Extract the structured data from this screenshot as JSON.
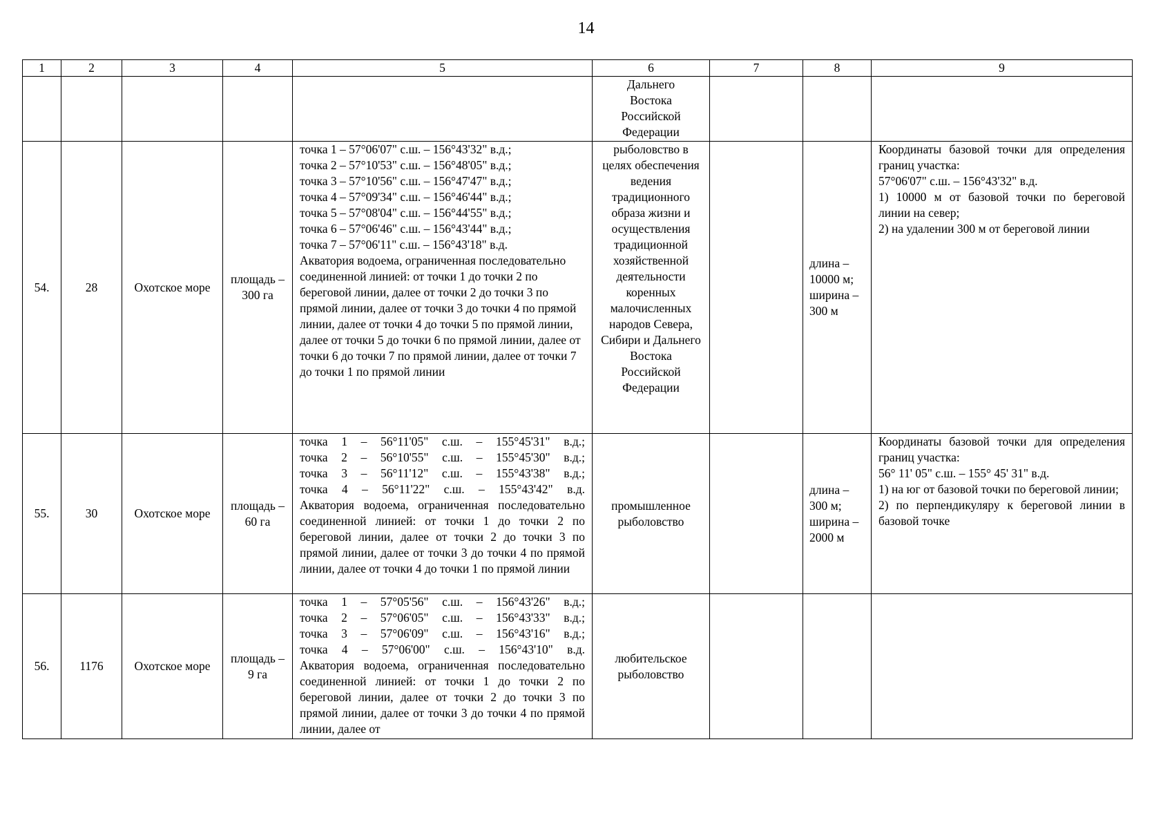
{
  "page_number": "14",
  "columns": [
    "1",
    "2",
    "3",
    "4",
    "5",
    "6",
    "7",
    "8",
    "9"
  ],
  "continuation_row": {
    "c6": [
      "Дальнего",
      "Востока",
      "Российской",
      "Федерации"
    ]
  },
  "rows": [
    {
      "num": "54.",
      "c2": "28",
      "c3": "Охотское море",
      "c4": "площадь – 300 га",
      "c5_points": [
        "точка 1 – 57°06'07\" с.ш. – 156°43'32\" в.д.;",
        "точка 2 – 57°10'53\" с.ш. – 156°48'05\" в.д.;",
        "точка 3 – 57°10'56\" с.ш. – 156°47'47\" в.д.;",
        "точка 4 – 57°09'34\" с.ш. – 156°46'44\" в.д.;",
        "точка 5 – 57°08'04\" с.ш. – 156°44'55\" в.д.;",
        "точка 6 – 57°06'46\" с.ш. – 156°43'44\" в.д.;",
        "точка 7 – 57°06'11\" с.ш. – 156°43'18\" в.д."
      ],
      "c5_text": "Акватория водоема, ограниченная последовательно соединенной линией: от точки 1 до точки 2 по береговой линии, далее от точки 2 до точки 3 по прямой линии, далее от точки 3 до точки 4 по прямой линии, далее от точки 4 до точки 5 по прямой линии, далее от точки 5 до точки 6 по прямой линии, далее от точки 6 до точки 7 по прямой линии, далее от точки 7 до точки 1 по прямой линии",
      "c6": "рыболовство в целях обеспечения ведения традиционного образа жизни и осуществления традиционной хозяйственной деятельности коренных малочисленных народов Севера, Сибири и Дальнего Востока Российской Федерации",
      "c7": "",
      "c8": "длина – 10000 м; ширина – 300 м",
      "c9": [
        "Координаты базовой точки для определения границ участка:",
        "57°06'07\" с.ш. – 156°43'32\" в.д.",
        "1) 10000 м от базовой точки по береговой линии на север;",
        "2) на удалении 300 м от береговой линии"
      ]
    },
    {
      "num": "55.",
      "c2": "30",
      "c3": "Охотское море",
      "c4": "площадь – 60 га",
      "c5_points": [
        "точка 1 – 56°11'05\" с.ш. – 155°45'31\" в.д.;",
        "точка 2 – 56°10'55\" с.ш. – 155°45'30\" в.д.;",
        "точка 3 – 56°11'12\" с.ш. – 155°43'38\" в.д.;",
        "точка 4 – 56°11'22\" с.ш. – 155°43'42\" в.д."
      ],
      "c5_text": "Акватория водоема, ограниченная последовательно соединенной линией: от точки 1 до точки 2 по береговой линии, далее от точки 2 до точки 3 по прямой линии, далее от точки 3 до точки 4 по прямой линии, далее от точки 4 до точки 1 по прямой линии",
      "c6": "промышленное рыболовство",
      "c7": "",
      "c8": "длина – 300 м; ширина – 2000 м",
      "c9": [
        "Координаты базовой точки для определения границ участка:",
        "56° 11' 05\" с.ш. –  155° 45' 31\" в.д.",
        "1) на юг от базовой точки по береговой линии;",
        "2) по перпендикуляру к береговой линии в базовой точке"
      ]
    },
    {
      "num": "56.",
      "c2": "1176",
      "c3": "Охотское море",
      "c4": "площадь – 9 га",
      "c5_points": [
        "точка 1 – 57°05'56\" с.ш. – 156°43'26\" в.д.;",
        "точка 2 – 57°06'05\" с.ш. – 156°43'33\" в.д.;",
        "точка 3 – 57°06'09\" с.ш. – 156°43'16\" в.д.;",
        "точка 4 – 57°06'00\" с.ш. – 156°43'10\" в.д."
      ],
      "c5_text": "Акватория водоема, ограниченная последовательно соединенной линией: от точки 1 до точки 2 по береговой линии, далее от точки 2 до точки 3 по прямой линии, далее от точки 3 до точки 4 по прямой линии, далее от",
      "c6": "любительское рыболовство",
      "c7": "",
      "c8": "",
      "c9": []
    }
  ]
}
